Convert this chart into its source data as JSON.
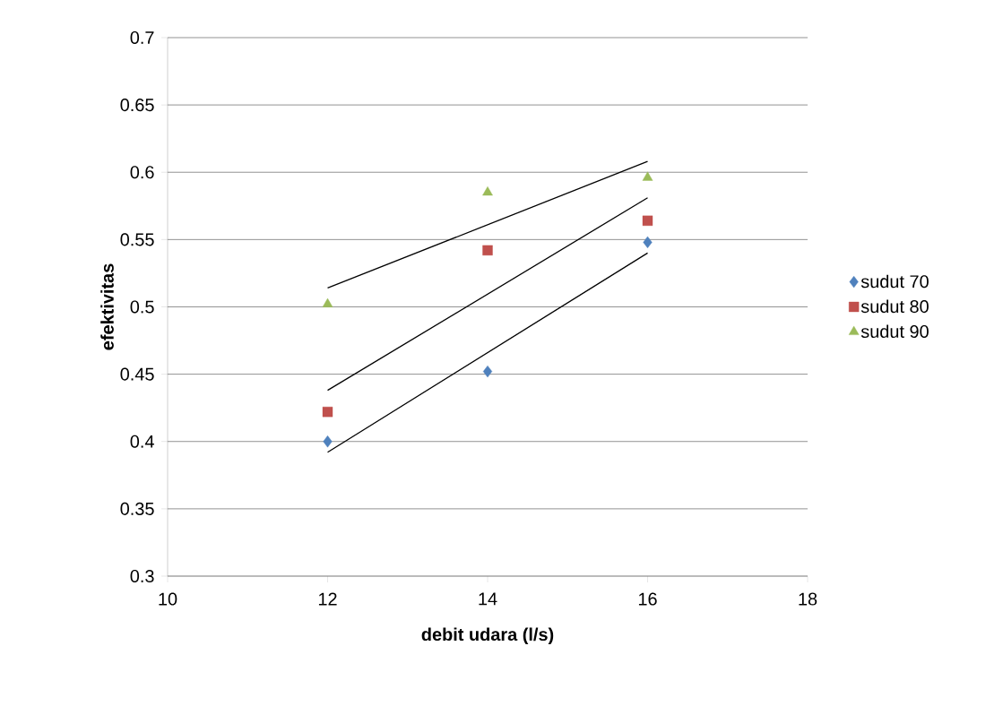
{
  "chart_data": {
    "type": "scatter",
    "xlabel": "debit udara (l/s)",
    "ylabel": "efektivitas",
    "xlim": [
      10,
      18
    ],
    "xticks": [
      10,
      12,
      14,
      16,
      18
    ],
    "ylim": [
      0.3,
      0.7
    ],
    "yticks": [
      0.3,
      0.35,
      0.4,
      0.45,
      0.5,
      0.55,
      0.6,
      0.65,
      0.7
    ],
    "grid": "y",
    "legend": "right",
    "series": [
      {
        "name": "sudut 70",
        "color": "#4f81bd",
        "marker": "diamond",
        "x": [
          12,
          14,
          16
        ],
        "values": [
          0.4,
          0.452,
          0.548
        ]
      },
      {
        "name": "sudut 80",
        "color": "#c0504d",
        "marker": "square",
        "x": [
          12,
          14,
          16
        ],
        "values": [
          0.422,
          0.542,
          0.564
        ]
      },
      {
        "name": "sudut 90",
        "color": "#9bbb59",
        "marker": "triangle",
        "x": [
          12,
          14,
          16
        ],
        "values": [
          0.502,
          0.585,
          0.596
        ]
      },
      {
        "type": "line",
        "color": "#000000",
        "line_style": "solid",
        "marker": "none",
        "x": [
          12,
          16
        ],
        "values": [
          0.392,
          0.54
        ]
      },
      {
        "type": "line",
        "color": "#000000",
        "line_style": "solid",
        "marker": "none",
        "x": [
          12,
          16
        ],
        "values": [
          0.438,
          0.581
        ]
      },
      {
        "type": "line",
        "color": "#000000",
        "line_style": "solid",
        "marker": "none",
        "x": [
          12,
          16
        ],
        "values": [
          0.514,
          0.608
        ]
      }
    ]
  }
}
